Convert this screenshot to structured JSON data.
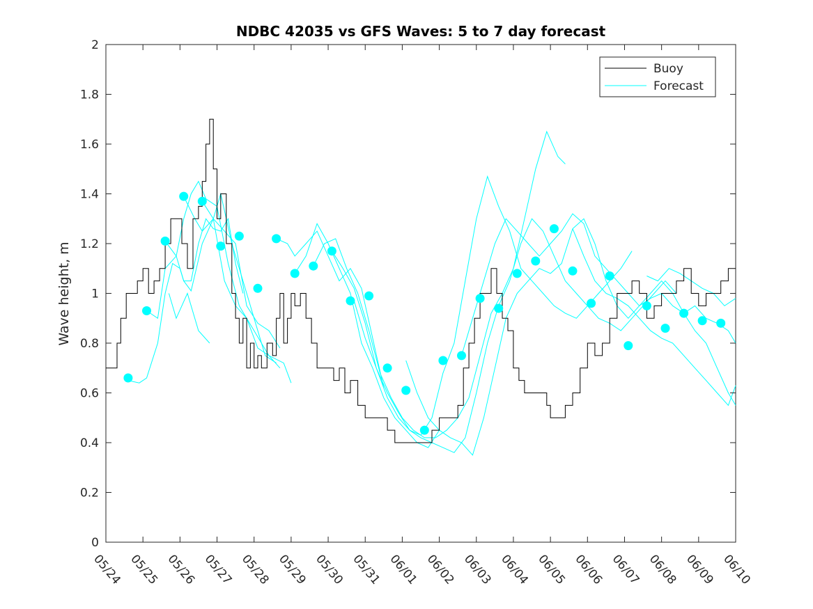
{
  "chart_data": {
    "type": "line",
    "title": "NDBC 42035 vs GFS Waves: 5 to 7 day forecast",
    "xlabel": "",
    "ylabel": "Wave height, m",
    "xlim": [
      "05/24",
      "06/10"
    ],
    "ylim": [
      0,
      2
    ],
    "grid": false,
    "legend_position": "top-right",
    "x_ticks": [
      "05/24",
      "05/25",
      "05/26",
      "05/27",
      "05/28",
      "05/29",
      "05/30",
      "05/31",
      "06/01",
      "06/02",
      "06/03",
      "06/04",
      "06/05",
      "06/06",
      "06/07",
      "06/08",
      "06/09",
      "06/10"
    ],
    "y_ticks": [
      0,
      0.2,
      0.4,
      0.6,
      0.8,
      1,
      1.2,
      1.4,
      1.6,
      1.8,
      2
    ],
    "colors": {
      "buoy": "#000000",
      "forecast": "#00ffff",
      "markers": "#00ffff"
    },
    "series": [
      {
        "name": "Buoy",
        "style": "step",
        "x_days": [
          0,
          0.05,
          0.2,
          0.3,
          0.4,
          0.55,
          0.7,
          0.85,
          1.0,
          1.15,
          1.3,
          1.45,
          1.6,
          1.75,
          1.9,
          2.05,
          2.2,
          2.35,
          2.5,
          2.6,
          2.7,
          2.8,
          2.9,
          3.0,
          3.1,
          3.25,
          3.4,
          3.5,
          3.6,
          3.7,
          3.8,
          3.9,
          4.0,
          4.1,
          4.2,
          4.35,
          4.5,
          4.6,
          4.7,
          4.8,
          4.9,
          5.0,
          5.1,
          5.25,
          5.4,
          5.55,
          5.7,
          5.85,
          6.0,
          6.15,
          6.3,
          6.45,
          6.6,
          6.8,
          7.0,
          7.2,
          7.4,
          7.6,
          7.8,
          8.0,
          8.2,
          8.4,
          8.6,
          8.8,
          9.0,
          9.1,
          9.2,
          9.35,
          9.5,
          9.65,
          9.8,
          9.95,
          10.1,
          10.25,
          10.4,
          10.55,
          10.7,
          10.85,
          11.0,
          11.15,
          11.3,
          11.45,
          11.6,
          11.75,
          11.9,
          12.0,
          12.2,
          12.4,
          12.6,
          12.8,
          13.0,
          13.2,
          13.4,
          13.6,
          13.8,
          14.0,
          14.2,
          14.4,
          14.6,
          14.8,
          15.0,
          15.2,
          15.4,
          15.6,
          15.8,
          16.0,
          16.2,
          16.4,
          16.6,
          16.8,
          17.0
        ],
        "values": [
          0.7,
          0.7,
          0.7,
          0.8,
          0.9,
          1.0,
          1.0,
          1.05,
          1.1,
          1.0,
          1.05,
          1.1,
          1.2,
          1.3,
          1.3,
          1.2,
          1.1,
          1.3,
          1.35,
          1.45,
          1.6,
          1.7,
          1.5,
          1.3,
          1.4,
          1.2,
          1.0,
          0.9,
          0.8,
          0.9,
          0.7,
          0.8,
          0.7,
          0.75,
          0.7,
          0.8,
          0.75,
          0.9,
          1.0,
          0.8,
          0.9,
          1.0,
          0.95,
          1.0,
          0.9,
          0.8,
          0.7,
          0.7,
          0.7,
          0.65,
          0.7,
          0.6,
          0.65,
          0.55,
          0.5,
          0.5,
          0.5,
          0.45,
          0.4,
          0.4,
          0.4,
          0.4,
          0.4,
          0.45,
          0.5,
          0.5,
          0.5,
          0.5,
          0.55,
          0.7,
          0.8,
          0.9,
          1.0,
          1.0,
          1.1,
          1.0,
          0.9,
          0.85,
          0.7,
          0.65,
          0.6,
          0.6,
          0.6,
          0.6,
          0.55,
          0.5,
          0.5,
          0.55,
          0.6,
          0.7,
          0.8,
          0.75,
          0.8,
          0.9,
          1.0,
          1.0,
          1.05,
          1.0,
          0.9,
          0.95,
          1.0,
          1.0,
          1.05,
          1.1,
          1.0,
          0.95,
          1.0,
          1.0,
          1.05,
          1.1,
          1.1
        ]
      },
      {
        "name": "Forecast",
        "style": "multi-run",
        "runs": [
          {
            "x_days": [
              0.6,
              0.9,
              1.1,
              1.4,
              1.6,
              1.8,
              2.0,
              2.1,
              2.3,
              2.5,
              2.7,
              2.9,
              3.1,
              3.3,
              3.5,
              3.7
            ],
            "values": [
              0.65,
              0.64,
              0.66,
              0.8,
              1.0,
              1.12,
              1.1,
              1.05,
              1.05,
              1.2,
              1.3,
              1.26,
              1.25,
              1.3,
              1.12,
              1.0
            ]
          },
          {
            "x_days": [
              1.1,
              1.4,
              1.6,
              1.9,
              2.1,
              2.3,
              2.5,
              2.7,
              3.0,
              3.3,
              3.6,
              4.0,
              4.4,
              4.8,
              5.0
            ],
            "values": [
              0.93,
              0.9,
              1.1,
              1.15,
              1.3,
              1.4,
              1.45,
              1.38,
              1.35,
              1.12,
              0.95,
              0.85,
              0.75,
              0.72,
              0.64
            ]
          },
          {
            "x_days": [
              1.6,
              1.9,
              2.1,
              2.3,
              2.6,
              2.9,
              3.1,
              3.4,
              3.7,
              4.0,
              4.3,
              4.6
            ],
            "values": [
              1.21,
              1.15,
              1.05,
              1.01,
              1.2,
              1.3,
              1.4,
              1.2,
              1.05,
              0.9,
              0.75,
              0.72
            ]
          },
          {
            "x_days": [
              1.7,
              1.9,
              2.2,
              2.5,
              2.8
            ],
            "values": [
              1.0,
              0.9,
              1.0,
              0.85,
              0.8
            ]
          },
          {
            "x_days": [
              2.1,
              2.4,
              2.6,
              2.9,
              3.2,
              3.5,
              3.8,
              4.1,
              4.4,
              4.7
            ],
            "values": [
              1.39,
              1.3,
              1.25,
              1.3,
              1.05,
              0.95,
              0.9,
              0.78,
              0.75,
              0.7
            ]
          },
          {
            "x_days": [
              2.6,
              2.9,
              3.2,
              3.5,
              3.8,
              4.1,
              4.4,
              4.7
            ],
            "values": [
              1.37,
              1.3,
              1.25,
              1.2,
              0.95,
              0.88,
              0.85,
              0.78
            ]
          },
          {
            "x_days": [
              4.6,
              4.9,
              5.1,
              5.4,
              5.7,
              6.0,
              6.3,
              6.6,
              6.9,
              7.2,
              7.5
            ],
            "values": [
              1.22,
              1.2,
              1.15,
              1.2,
              1.25,
              1.15,
              1.05,
              1.1,
              1.02,
              0.82,
              0.62
            ]
          },
          {
            "x_days": [
              5.1,
              5.4,
              5.7,
              6.0,
              6.3,
              6.6,
              6.9,
              7.2,
              7.5,
              7.8,
              8.1,
              8.4,
              8.7,
              9.0
            ],
            "values": [
              1.08,
              1.15,
              1.28,
              1.2,
              1.1,
              1.0,
              0.8,
              0.7,
              0.58,
              0.5,
              0.45,
              0.4,
              0.38,
              0.45
            ]
          },
          {
            "x_days": [
              5.6,
              5.9,
              6.2,
              6.5,
              6.8,
              7.1,
              7.4,
              7.7,
              8.0,
              8.3,
              8.6,
              8.9,
              9.2,
              9.5,
              9.8,
              10.1,
              10.4,
              10.7,
              11.0,
              11.3,
              11.6,
              11.9,
              12.2,
              12.4
            ],
            "values": [
              1.11,
              1.2,
              1.22,
              1.1,
              1.0,
              0.85,
              0.68,
              0.58,
              0.5,
              0.45,
              0.42,
              0.42,
              0.45,
              0.5,
              0.58,
              0.75,
              0.92,
              1.0,
              1.1,
              1.3,
              1.5,
              1.65,
              1.55,
              1.52
            ]
          },
          {
            "x_days": [
              6.1,
              6.4,
              6.7,
              7.0,
              7.3,
              7.6,
              7.9,
              8.2,
              8.5,
              8.8,
              9.1,
              9.4,
              9.7,
              10.0,
              10.3,
              10.6,
              10.9,
              11.2,
              11.5,
              11.8,
              12.1,
              12.4,
              12.7,
              13.0,
              13.3,
              13.6,
              13.9,
              14.2
            ],
            "values": [
              1.17,
              1.1,
              1.02,
              0.88,
              0.7,
              0.58,
              0.5,
              0.45,
              0.43,
              0.5,
              0.68,
              0.8,
              1.05,
              1.3,
              1.47,
              1.35,
              1.25,
              1.1,
              1.05,
              1.0,
              0.95,
              0.92,
              0.9,
              0.95,
              1.0,
              1.05,
              1.1,
              1.17
            ]
          },
          {
            "x_days": [
              6.7,
              7.0,
              7.3,
              7.6,
              7.9,
              8.2,
              8.5,
              8.8,
              9.1,
              9.4,
              9.7,
              10.0,
              10.3,
              10.6,
              10.9,
              11.2,
              11.5,
              11.8,
              12.1,
              12.4,
              12.7,
              13.0,
              13.3,
              13.6,
              13.9,
              14.2,
              14.5,
              14.8,
              15.1,
              15.4
            ],
            "values": [
              0.97,
              0.82,
              0.7,
              0.6,
              0.52,
              0.45,
              0.42,
              0.4,
              0.38,
              0.36,
              0.42,
              0.6,
              0.8,
              0.95,
              1.05,
              1.2,
              1.3,
              1.25,
              1.15,
              1.05,
              1.0,
              0.95,
              0.9,
              0.88,
              0.85,
              0.9,
              0.95,
              1.0,
              1.05,
              1.0
            ]
          },
          {
            "x_days": [
              8.1,
              8.4,
              8.7,
              9.0,
              9.3,
              9.6,
              9.9,
              10.2,
              10.5,
              10.8,
              11.1,
              11.4,
              11.7,
              12.0,
              12.3,
              12.6,
              12.9,
              13.2,
              13.5,
              13.8,
              14.1,
              14.4,
              14.7,
              15.0,
              15.3,
              15.6,
              15.9,
              16.2,
              16.5,
              16.8,
              17.0
            ],
            "values": [
              0.73,
              0.6,
              0.5,
              0.45,
              0.42,
              0.4,
              0.35,
              0.5,
              0.7,
              0.9,
              1.0,
              1.05,
              1.1,
              1.08,
              1.12,
              1.26,
              1.3,
              1.2,
              1.05,
              0.95,
              0.9,
              0.95,
              1.0,
              1.05,
              1.0,
              0.92,
              0.85,
              0.8,
              0.7,
              0.6,
              0.55
            ]
          },
          {
            "x_days": [
              9.6,
              9.9,
              10.2,
              10.5,
              10.8,
              11.1,
              11.4,
              11.7,
              12.0,
              12.3,
              12.6,
              12.9,
              13.2,
              13.5,
              13.8,
              14.1,
              14.4,
              14.7,
              15.0,
              15.3,
              15.6,
              15.9,
              16.2,
              16.5,
              16.8,
              17.0
            ],
            "values": [
              0.75,
              0.9,
              1.05,
              1.2,
              1.3,
              1.25,
              1.2,
              1.15,
              1.2,
              1.25,
              1.32,
              1.28,
              1.15,
              1.1,
              1.05,
              1.0,
              0.95,
              0.98,
              1.0,
              0.95,
              0.92,
              0.95,
              0.9,
              0.88,
              0.85,
              0.8
            ]
          },
          {
            "x_days": [
              12.6,
              12.9,
              13.2,
              13.5,
              13.8,
              14.1,
              14.4,
              14.7,
              15.0,
              15.3,
              15.6,
              15.9,
              16.2,
              16.5,
              16.8,
              17.0
            ],
            "values": [
              1.26,
              1.15,
              1.05,
              1.0,
              0.98,
              0.95,
              0.9,
              0.85,
              0.82,
              0.8,
              0.75,
              0.7,
              0.65,
              0.6,
              0.55,
              0.63
            ]
          },
          {
            "x_days": [
              14.6,
              14.9,
              15.2,
              15.5,
              15.8,
              16.1,
              16.4,
              16.7,
              17.0
            ],
            "values": [
              1.07,
              1.05,
              1.1,
              1.08,
              1.05,
              1.02,
              1.0,
              0.95,
              0.98
            ]
          }
        ]
      }
    ],
    "markers": {
      "x_days": [
        0.6,
        1.1,
        1.6,
        2.1,
        2.6,
        3.1,
        3.6,
        4.1,
        4.6,
        5.1,
        5.6,
        6.1,
        6.6,
        7.1,
        7.6,
        8.1,
        8.6,
        9.1,
        9.6,
        10.1,
        10.6,
        11.1,
        11.6,
        12.1,
        12.6,
        13.1,
        13.6,
        14.1,
        14.6,
        15.1,
        15.6,
        16.1,
        16.6
      ],
      "values": [
        0.66,
        0.93,
        1.21,
        1.39,
        1.37,
        1.19,
        1.23,
        1.02,
        1.22,
        1.08,
        1.11,
        1.17,
        0.97,
        0.99,
        0.7,
        0.61,
        0.45,
        0.73,
        0.75,
        0.98,
        0.94,
        1.08,
        1.13,
        1.26,
        1.09,
        0.96,
        1.07,
        0.79,
        0.95,
        0.86,
        0.92,
        0.89,
        0.88
      ]
    }
  }
}
